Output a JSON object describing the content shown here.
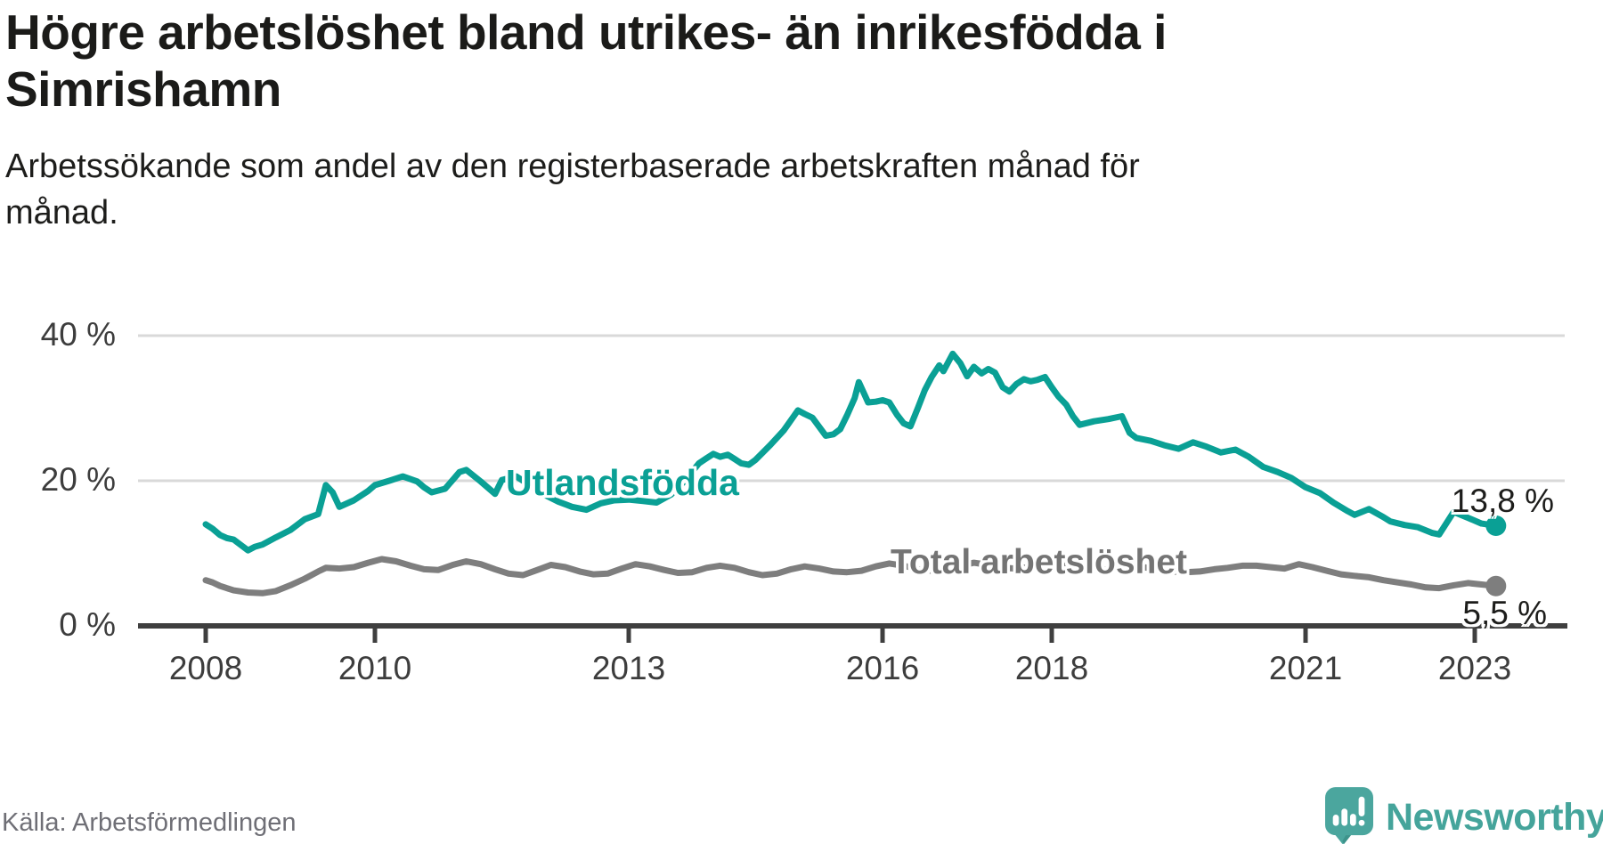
{
  "header": {
    "title_line1": "Högre arbetslöshet bland utrikes- än inrikesfödda i",
    "title_line2": "Simrishamn",
    "subtitle_line1": "Arbetssökande som andel av den registerbaserade arbetskraften månad för",
    "subtitle_line2": "månad."
  },
  "chart_data": {
    "type": "line",
    "title": "Högre arbetslöshet bland utrikes- än inrikesfödda i Simrishamn",
    "subtitle": "Arbetssökande som andel av den registerbaserade arbetskraften månad för månad.",
    "unit": "%",
    "xlabel": "",
    "ylabel": "",
    "ylim": [
      0,
      40
    ],
    "xlim": [
      2007.2,
      2024.1
    ],
    "grid": true,
    "legend_position": "inline-labels",
    "yticks": [
      {
        "value": 40,
        "label": "40 %"
      },
      {
        "value": 20,
        "label": "20 %"
      },
      {
        "value": 0,
        "label": "0 %"
      }
    ],
    "xticks": [
      {
        "year": 2008,
        "label": "2008"
      },
      {
        "year": 2010,
        "label": "2010"
      },
      {
        "year": 2013,
        "label": "2013"
      },
      {
        "year": 2016,
        "label": "2016"
      },
      {
        "year": 2018,
        "label": "2018"
      },
      {
        "year": 2021,
        "label": "2021"
      },
      {
        "year": 2023,
        "label": "2023"
      }
    ],
    "series": [
      {
        "name": "Utlandsfödda",
        "color": "#0aa095",
        "end_label": "13,8 %",
        "end_value": 13.8,
        "points": [
          [
            2008.0,
            14.0
          ],
          [
            2008.08,
            13.4
          ],
          [
            2008.17,
            12.5
          ],
          [
            2008.25,
            12.1
          ],
          [
            2008.33,
            11.9
          ],
          [
            2008.42,
            11.1
          ],
          [
            2008.5,
            10.4
          ],
          [
            2008.58,
            10.9
          ],
          [
            2008.67,
            11.2
          ],
          [
            2008.83,
            12.2
          ],
          [
            2009.0,
            13.2
          ],
          [
            2009.17,
            14.7
          ],
          [
            2009.33,
            15.4
          ],
          [
            2009.42,
            19.4
          ],
          [
            2009.5,
            18.4
          ],
          [
            2009.58,
            16.4
          ],
          [
            2009.75,
            17.3
          ],
          [
            2009.92,
            18.6
          ],
          [
            2010.0,
            19.4
          ],
          [
            2010.17,
            20.0
          ],
          [
            2010.33,
            20.6
          ],
          [
            2010.5,
            19.9
          ],
          [
            2010.58,
            19.1
          ],
          [
            2010.67,
            18.4
          ],
          [
            2010.83,
            18.9
          ],
          [
            2011.0,
            21.2
          ],
          [
            2011.08,
            21.5
          ],
          [
            2011.25,
            19.9
          ],
          [
            2011.42,
            18.2
          ],
          [
            2011.5,
            20.1
          ],
          [
            2011.67,
            20.6
          ],
          [
            2011.83,
            19.4
          ],
          [
            2012.0,
            18.1
          ],
          [
            2012.17,
            17.1
          ],
          [
            2012.33,
            16.4
          ],
          [
            2012.5,
            16.0
          ],
          [
            2012.67,
            16.9
          ],
          [
            2012.83,
            17.3
          ],
          [
            2013.0,
            17.4
          ],
          [
            2013.17,
            17.2
          ],
          [
            2013.33,
            17.0
          ],
          [
            2013.5,
            18.1
          ],
          [
            2013.67,
            20.1
          ],
          [
            2013.83,
            22.4
          ],
          [
            2013.92,
            23.1
          ],
          [
            2014.0,
            23.7
          ],
          [
            2014.08,
            23.3
          ],
          [
            2014.17,
            23.6
          ],
          [
            2014.25,
            23.0
          ],
          [
            2014.33,
            22.4
          ],
          [
            2014.42,
            22.2
          ],
          [
            2014.5,
            22.9
          ],
          [
            2014.67,
            24.9
          ],
          [
            2014.83,
            26.9
          ],
          [
            2015.0,
            29.7
          ],
          [
            2015.08,
            29.2
          ],
          [
            2015.17,
            28.7
          ],
          [
            2015.33,
            26.2
          ],
          [
            2015.42,
            26.4
          ],
          [
            2015.5,
            27.1
          ],
          [
            2015.58,
            29.0
          ],
          [
            2015.67,
            31.4
          ],
          [
            2015.72,
            33.6
          ],
          [
            2015.83,
            30.8
          ],
          [
            2015.92,
            30.9
          ],
          [
            2016.0,
            31.1
          ],
          [
            2016.08,
            30.8
          ],
          [
            2016.17,
            29.1
          ],
          [
            2016.25,
            27.9
          ],
          [
            2016.33,
            27.5
          ],
          [
            2016.42,
            30.1
          ],
          [
            2016.5,
            32.5
          ],
          [
            2016.58,
            34.3
          ],
          [
            2016.67,
            35.9
          ],
          [
            2016.72,
            35.1
          ],
          [
            2016.83,
            37.5
          ],
          [
            2016.92,
            36.2
          ],
          [
            2017.0,
            34.4
          ],
          [
            2017.08,
            35.7
          ],
          [
            2017.17,
            34.8
          ],
          [
            2017.25,
            35.4
          ],
          [
            2017.33,
            34.9
          ],
          [
            2017.42,
            32.9
          ],
          [
            2017.5,
            32.3
          ],
          [
            2017.58,
            33.3
          ],
          [
            2017.67,
            34.0
          ],
          [
            2017.75,
            33.7
          ],
          [
            2017.83,
            33.9
          ],
          [
            2017.92,
            34.3
          ],
          [
            2018.0,
            32.9
          ],
          [
            2018.08,
            31.6
          ],
          [
            2018.17,
            30.5
          ],
          [
            2018.25,
            28.9
          ],
          [
            2018.33,
            27.7
          ],
          [
            2018.5,
            28.2
          ],
          [
            2018.67,
            28.5
          ],
          [
            2018.83,
            28.9
          ],
          [
            2018.92,
            26.6
          ],
          [
            2019.0,
            25.9
          ],
          [
            2019.17,
            25.5
          ],
          [
            2019.33,
            24.9
          ],
          [
            2019.5,
            24.4
          ],
          [
            2019.67,
            25.3
          ],
          [
            2019.83,
            24.7
          ],
          [
            2020.0,
            23.9
          ],
          [
            2020.17,
            24.3
          ],
          [
            2020.33,
            23.3
          ],
          [
            2020.5,
            21.9
          ],
          [
            2020.67,
            21.2
          ],
          [
            2020.83,
            20.4
          ],
          [
            2021.0,
            19.1
          ],
          [
            2021.17,
            18.3
          ],
          [
            2021.33,
            17.0
          ],
          [
            2021.5,
            15.8
          ],
          [
            2021.58,
            15.3
          ],
          [
            2021.75,
            16.1
          ],
          [
            2021.92,
            15.0
          ],
          [
            2022.0,
            14.4
          ],
          [
            2022.17,
            13.9
          ],
          [
            2022.33,
            13.6
          ],
          [
            2022.5,
            12.8
          ],
          [
            2022.58,
            12.6
          ],
          [
            2022.75,
            15.7
          ],
          [
            2022.92,
            14.9
          ],
          [
            2023.08,
            14.1
          ],
          [
            2023.25,
            13.8
          ]
        ]
      },
      {
        "name": "Total arbetslöshet",
        "color": "#7e7e7e",
        "end_label": "5,5 %",
        "end_value": 5.5,
        "points": [
          [
            2008.0,
            6.3
          ],
          [
            2008.08,
            6.0
          ],
          [
            2008.17,
            5.5
          ],
          [
            2008.33,
            4.9
          ],
          [
            2008.5,
            4.6
          ],
          [
            2008.67,
            4.5
          ],
          [
            2008.83,
            4.8
          ],
          [
            2009.0,
            5.6
          ],
          [
            2009.17,
            6.5
          ],
          [
            2009.33,
            7.5
          ],
          [
            2009.42,
            8.0
          ],
          [
            2009.58,
            7.9
          ],
          [
            2009.75,
            8.1
          ],
          [
            2009.92,
            8.7
          ],
          [
            2010.08,
            9.2
          ],
          [
            2010.25,
            8.9
          ],
          [
            2010.42,
            8.3
          ],
          [
            2010.58,
            7.8
          ],
          [
            2010.75,
            7.7
          ],
          [
            2010.92,
            8.4
          ],
          [
            2011.08,
            8.9
          ],
          [
            2011.25,
            8.5
          ],
          [
            2011.42,
            7.8
          ],
          [
            2011.58,
            7.2
          ],
          [
            2011.75,
            7.0
          ],
          [
            2011.92,
            7.7
          ],
          [
            2012.08,
            8.4
          ],
          [
            2012.25,
            8.1
          ],
          [
            2012.42,
            7.5
          ],
          [
            2012.58,
            7.1
          ],
          [
            2012.75,
            7.2
          ],
          [
            2012.92,
            7.9
          ],
          [
            2013.08,
            8.5
          ],
          [
            2013.25,
            8.2
          ],
          [
            2013.42,
            7.7
          ],
          [
            2013.58,
            7.3
          ],
          [
            2013.75,
            7.4
          ],
          [
            2013.92,
            8.0
          ],
          [
            2014.08,
            8.3
          ],
          [
            2014.25,
            8.0
          ],
          [
            2014.42,
            7.4
          ],
          [
            2014.58,
            7.0
          ],
          [
            2014.75,
            7.2
          ],
          [
            2014.92,
            7.8
          ],
          [
            2015.08,
            8.2
          ],
          [
            2015.25,
            7.9
          ],
          [
            2015.42,
            7.5
          ],
          [
            2015.58,
            7.4
          ],
          [
            2015.75,
            7.6
          ],
          [
            2015.92,
            8.2
          ],
          [
            2016.08,
            8.6
          ],
          [
            2016.25,
            8.3
          ],
          [
            2016.42,
            7.8
          ],
          [
            2016.58,
            7.6
          ],
          [
            2016.75,
            7.8
          ],
          [
            2016.92,
            8.3
          ],
          [
            2017.08,
            8.7
          ],
          [
            2017.25,
            8.4
          ],
          [
            2017.42,
            8.0
          ],
          [
            2017.58,
            7.9
          ],
          [
            2017.75,
            8.1
          ],
          [
            2017.92,
            8.5
          ],
          [
            2018.08,
            8.4
          ],
          [
            2018.25,
            8.1
          ],
          [
            2018.42,
            7.8
          ],
          [
            2018.58,
            7.7
          ],
          [
            2018.75,
            7.9
          ],
          [
            2018.92,
            8.2
          ],
          [
            2019.08,
            8.1
          ],
          [
            2019.25,
            7.8
          ],
          [
            2019.42,
            7.5
          ],
          [
            2019.58,
            7.4
          ],
          [
            2019.75,
            7.5
          ],
          [
            2019.92,
            7.8
          ],
          [
            2020.08,
            8.0
          ],
          [
            2020.25,
            8.3
          ],
          [
            2020.42,
            8.3
          ],
          [
            2020.58,
            8.1
          ],
          [
            2020.75,
            7.9
          ],
          [
            2020.92,
            8.5
          ],
          [
            2021.08,
            8.1
          ],
          [
            2021.25,
            7.6
          ],
          [
            2021.42,
            7.1
          ],
          [
            2021.58,
            6.9
          ],
          [
            2021.75,
            6.7
          ],
          [
            2021.92,
            6.3
          ],
          [
            2022.08,
            6.0
          ],
          [
            2022.25,
            5.7
          ],
          [
            2022.42,
            5.3
          ],
          [
            2022.58,
            5.2
          ],
          [
            2022.75,
            5.6
          ],
          [
            2022.92,
            5.9
          ],
          [
            2023.08,
            5.7
          ],
          [
            2023.25,
            5.5
          ]
        ]
      }
    ]
  },
  "footer": {
    "source": "Källa: Arbetsförmedlingen",
    "brand": "Newsworthy"
  },
  "colors": {
    "accent_teal": "#0aa095",
    "series_gray": "#7e7e7e",
    "brand_teal": "#4ba69e",
    "text_dark": "#1d1d1b",
    "tick_text": "#3d3d3d",
    "source_gray": "#6f6f76",
    "gridline": "#d9d9d9",
    "axis": "#3f3f3f"
  }
}
